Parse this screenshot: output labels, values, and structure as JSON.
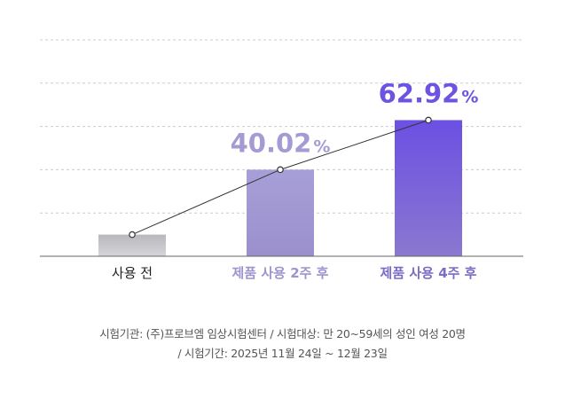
{
  "chart_data": {
    "type": "bar",
    "categories": [
      "사용 전",
      "제품 사용 2주 후",
      "제품 사용 4주 후"
    ],
    "values": [
      10,
      40.02,
      62.92
    ],
    "value_labels": [
      "",
      "40.02",
      "62.92"
    ],
    "value_unit": "%",
    "line_overlay": true,
    "ylim": [
      0,
      100
    ],
    "grid": true,
    "colors": {
      "bars": [
        "#c2c2c6",
        "#a59bd4",
        "#6e55e0"
      ],
      "category_labels": [
        "#222222",
        "#9e93cf",
        "#7b6ac6"
      ],
      "value_labels": [
        "#999999",
        "#a59ad3",
        "#6e53e1"
      ]
    }
  },
  "footnote": {
    "line1": "시험기관: (주)프로브엠 임상시험센터 / 시험대상: 만 20~59세의 성인 여성 20명",
    "line2": "/ 시험기간: 2025년 11월 24일 ~ 12월 23일"
  }
}
